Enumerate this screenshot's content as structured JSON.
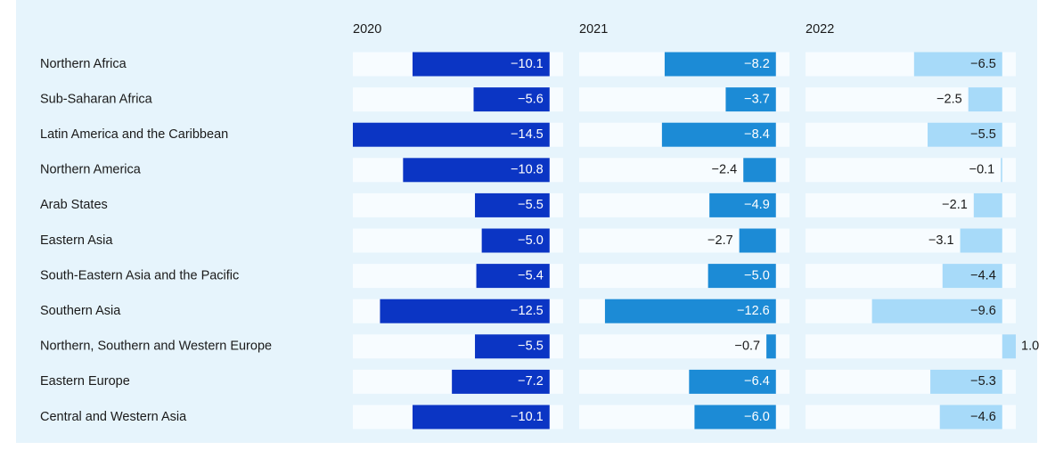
{
  "chart_data": {
    "type": "bar",
    "orientation": "horizontal",
    "categories": [
      "Northern Africa",
      "Sub-Saharan Africa",
      "Latin America and the Caribbean",
      "Northern America",
      "Arab States",
      "Eastern Asia",
      "South-Eastern Asia and the Pacific",
      "Southern Asia",
      "Northern, Southern and Western Europe",
      "Eastern Europe",
      "Central and Western Asia"
    ],
    "xlim": [
      -14.5,
      1.0
    ],
    "series": [
      {
        "name": "2020",
        "color": "#0b35c4",
        "label_color": "#ffffff",
        "values": [
          -10.1,
          -5.6,
          -14.5,
          -10.8,
          -5.5,
          -5.0,
          -5.4,
          -12.5,
          -5.5,
          -7.2,
          -10.1
        ],
        "value_labels": [
          "−10.1",
          "−5.6",
          "−14.5",
          "−10.8",
          "−5.5",
          "−5.0",
          "−5.4",
          "−12.5",
          "−5.5",
          "−7.2",
          "−10.1"
        ]
      },
      {
        "name": "2021",
        "color": "#1c8bd6",
        "label_color": "#ffffff",
        "values": [
          -8.2,
          -3.7,
          -8.4,
          -2.4,
          -4.9,
          -2.7,
          -5.0,
          -12.6,
          -0.7,
          -6.4,
          -6.0
        ],
        "value_labels": [
          "−8.2",
          "−3.7",
          "−8.4",
          "−2.4",
          "−4.9",
          "−2.7",
          "−5.0",
          "−12.6",
          "−0.7",
          "−6.4",
          "−6.0"
        ]
      },
      {
        "name": "2022",
        "color": "#a7daf9",
        "label_color": "#1a1a1a",
        "values": [
          -6.5,
          -2.5,
          -5.5,
          -0.1,
          -2.1,
          -3.1,
          -4.4,
          -9.6,
          1.0,
          -5.3,
          -4.6
        ],
        "value_labels": [
          "−6.5",
          "−2.5",
          "−5.5",
          "−0.1",
          "−2.1",
          "−3.1",
          "−4.4",
          "−9.6",
          "1.0",
          "−5.3",
          "−4.6"
        ]
      }
    ]
  }
}
